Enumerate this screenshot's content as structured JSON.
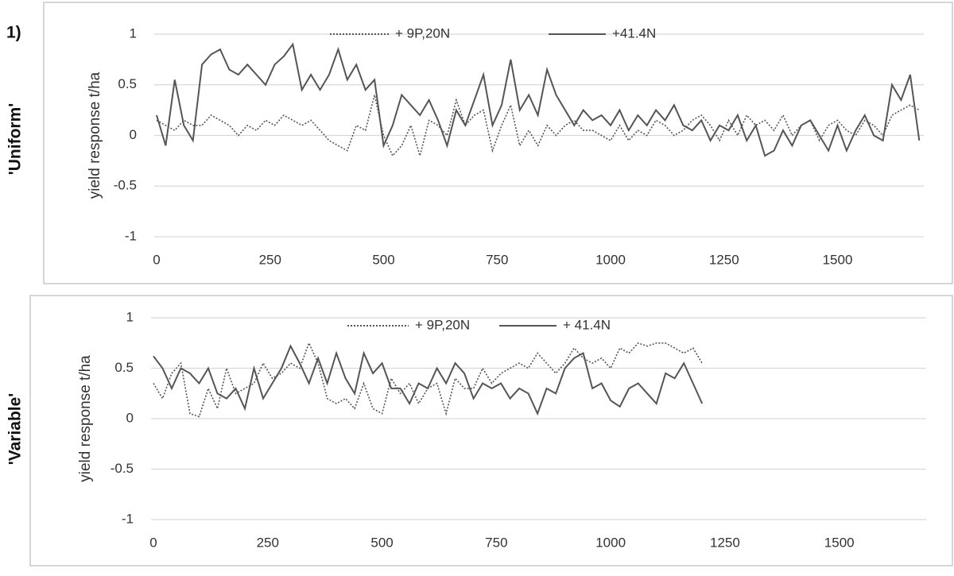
{
  "figure_label": "1)",
  "chart_data": [
    {
      "type": "line",
      "row_label": "'Uniform'",
      "ylabel": "yield response t/ha",
      "x": [
        0,
        20,
        40,
        60,
        80,
        100,
        120,
        140,
        160,
        180,
        200,
        220,
        240,
        260,
        280,
        300,
        320,
        340,
        360,
        380,
        400,
        420,
        440,
        460,
        480,
        500,
        520,
        540,
        560,
        580,
        600,
        620,
        640,
        660,
        680,
        700,
        720,
        740,
        760,
        780,
        800,
        820,
        840,
        860,
        880,
        900,
        920,
        940,
        960,
        980,
        1000,
        1020,
        1040,
        1060,
        1080,
        1100,
        1120,
        1140,
        1160,
        1180,
        1200,
        1220,
        1240,
        1260,
        1280,
        1300,
        1320,
        1340,
        1360,
        1380,
        1400,
        1420,
        1440,
        1460,
        1480,
        1500,
        1520,
        1540,
        1560,
        1580,
        1600,
        1620,
        1640,
        1660,
        1680
      ],
      "series": [
        {
          "name": "+ 9P,20N",
          "color": "#555555",
          "dash": "dotted",
          "values": [
            0.15,
            0.1,
            0.05,
            0.15,
            0.1,
            0.1,
            0.2,
            0.15,
            0.1,
            0.0,
            0.1,
            0.05,
            0.15,
            0.1,
            0.2,
            0.15,
            0.1,
            0.15,
            0.05,
            -0.05,
            -0.1,
            -0.15,
            0.1,
            0.05,
            0.4,
            0.0,
            -0.2,
            -0.1,
            0.1,
            -0.2,
            0.15,
            0.1,
            0.0,
            0.35,
            0.1,
            0.2,
            0.25,
            -0.15,
            0.1,
            0.3,
            -0.1,
            0.05,
            -0.1,
            0.1,
            0.0,
            0.1,
            0.15,
            0.05,
            0.05,
            0.0,
            -0.05,
            0.1,
            -0.05,
            0.05,
            0.0,
            0.15,
            0.1,
            0.0,
            0.05,
            0.15,
            0.2,
            0.1,
            -0.05,
            0.15,
            0.0,
            0.2,
            0.1,
            0.15,
            0.05,
            0.2,
            0.0,
            0.1,
            0.15,
            -0.05,
            0.1,
            0.15,
            0.05,
            0.0,
            0.15,
            0.1,
            0.0,
            0.2,
            0.25,
            0.3,
            0.25
          ]
        },
        {
          "name": "+41.4N",
          "color": "#555555",
          "dash": "solid",
          "values": [
            0.2,
            -0.1,
            0.55,
            0.1,
            -0.05,
            0.7,
            0.8,
            0.85,
            0.65,
            0.6,
            0.7,
            0.6,
            0.5,
            0.7,
            0.78,
            0.9,
            0.45,
            0.6,
            0.45,
            0.6,
            0.85,
            0.55,
            0.7,
            0.45,
            0.55,
            -0.1,
            0.1,
            0.4,
            0.3,
            0.2,
            0.35,
            0.15,
            -0.1,
            0.25,
            0.1,
            0.35,
            0.6,
            0.1,
            0.3,
            0.75,
            0.25,
            0.4,
            0.2,
            0.65,
            0.4,
            0.25,
            0.1,
            0.25,
            0.15,
            0.2,
            0.1,
            0.25,
            0.05,
            0.2,
            0.1,
            0.25,
            0.15,
            0.3,
            0.1,
            0.05,
            0.15,
            -0.05,
            0.1,
            0.05,
            0.2,
            -0.05,
            0.1,
            -0.2,
            -0.15,
            0.05,
            -0.1,
            0.1,
            0.15,
            0.0,
            -0.15,
            0.1,
            -0.15,
            0.05,
            0.2,
            0.0,
            -0.05,
            0.5,
            0.35,
            0.6,
            -0.05
          ]
        }
      ],
      "xlim": [
        0,
        1690
      ],
      "xticks": [
        0,
        250,
        500,
        750,
        1000,
        1250,
        1500
      ],
      "ylim": [
        -1,
        1
      ],
      "yticks": [
        1,
        0.5,
        0,
        -0.5,
        -1
      ],
      "grid": true,
      "legend": "top"
    },
    {
      "type": "line",
      "row_label": "'Variable'",
      "ylabel": "yield response t/ha",
      "x": [
        0,
        20,
        40,
        60,
        80,
        100,
        120,
        140,
        160,
        180,
        200,
        220,
        240,
        260,
        280,
        300,
        320,
        340,
        360,
        380,
        400,
        420,
        440,
        460,
        480,
        500,
        520,
        540,
        560,
        580,
        600,
        620,
        640,
        660,
        680,
        700,
        720,
        740,
        760,
        780,
        800,
        820,
        840,
        860,
        880,
        900,
        920,
        940,
        960,
        980,
        1000,
        1020,
        1040,
        1060,
        1080,
        1100,
        1120,
        1140,
        1160,
        1180,
        1200
      ],
      "series": [
        {
          "name": "+ 9P,20N",
          "color": "#555555",
          "dash": "dotted",
          "values": [
            0.35,
            0.2,
            0.45,
            0.55,
            0.05,
            0.02,
            0.3,
            0.1,
            0.5,
            0.25,
            0.3,
            0.35,
            0.55,
            0.4,
            0.45,
            0.55,
            0.5,
            0.75,
            0.55,
            0.2,
            0.15,
            0.2,
            0.1,
            0.35,
            0.1,
            0.05,
            0.4,
            0.25,
            0.35,
            0.15,
            0.3,
            0.35,
            0.05,
            0.4,
            0.3,
            0.3,
            0.5,
            0.35,
            0.45,
            0.5,
            0.55,
            0.5,
            0.65,
            0.55,
            0.45,
            0.55,
            0.7,
            0.6,
            0.55,
            0.6,
            0.5,
            0.7,
            0.65,
            0.75,
            0.72,
            0.75,
            0.75,
            0.7,
            0.65,
            0.7,
            0.55
          ]
        },
        {
          "name": "+ 41.4N",
          "color": "#555555",
          "dash": "solid",
          "values": [
            0.62,
            0.5,
            0.3,
            0.5,
            0.45,
            0.35,
            0.5,
            0.25,
            0.2,
            0.3,
            0.1,
            0.5,
            0.2,
            0.35,
            0.5,
            0.72,
            0.55,
            0.35,
            0.6,
            0.35,
            0.65,
            0.4,
            0.25,
            0.65,
            0.45,
            0.55,
            0.3,
            0.3,
            0.15,
            0.35,
            0.3,
            0.5,
            0.35,
            0.55,
            0.45,
            0.2,
            0.35,
            0.3,
            0.35,
            0.2,
            0.3,
            0.25,
            0.05,
            0.3,
            0.25,
            0.5,
            0.6,
            0.65,
            0.3,
            0.35,
            0.18,
            0.12,
            0.3,
            0.35,
            0.25,
            0.15,
            0.45,
            0.4,
            0.55,
            0.35,
            0.15
          ]
        }
      ],
      "xlim": [
        0,
        1690
      ],
      "xticks": [
        0,
        250,
        500,
        750,
        1000,
        1250,
        1500
      ],
      "ylim": [
        -1,
        1
      ],
      "yticks": [
        1,
        0.5,
        0,
        -0.5,
        -1
      ],
      "grid": true,
      "legend": "top"
    }
  ]
}
